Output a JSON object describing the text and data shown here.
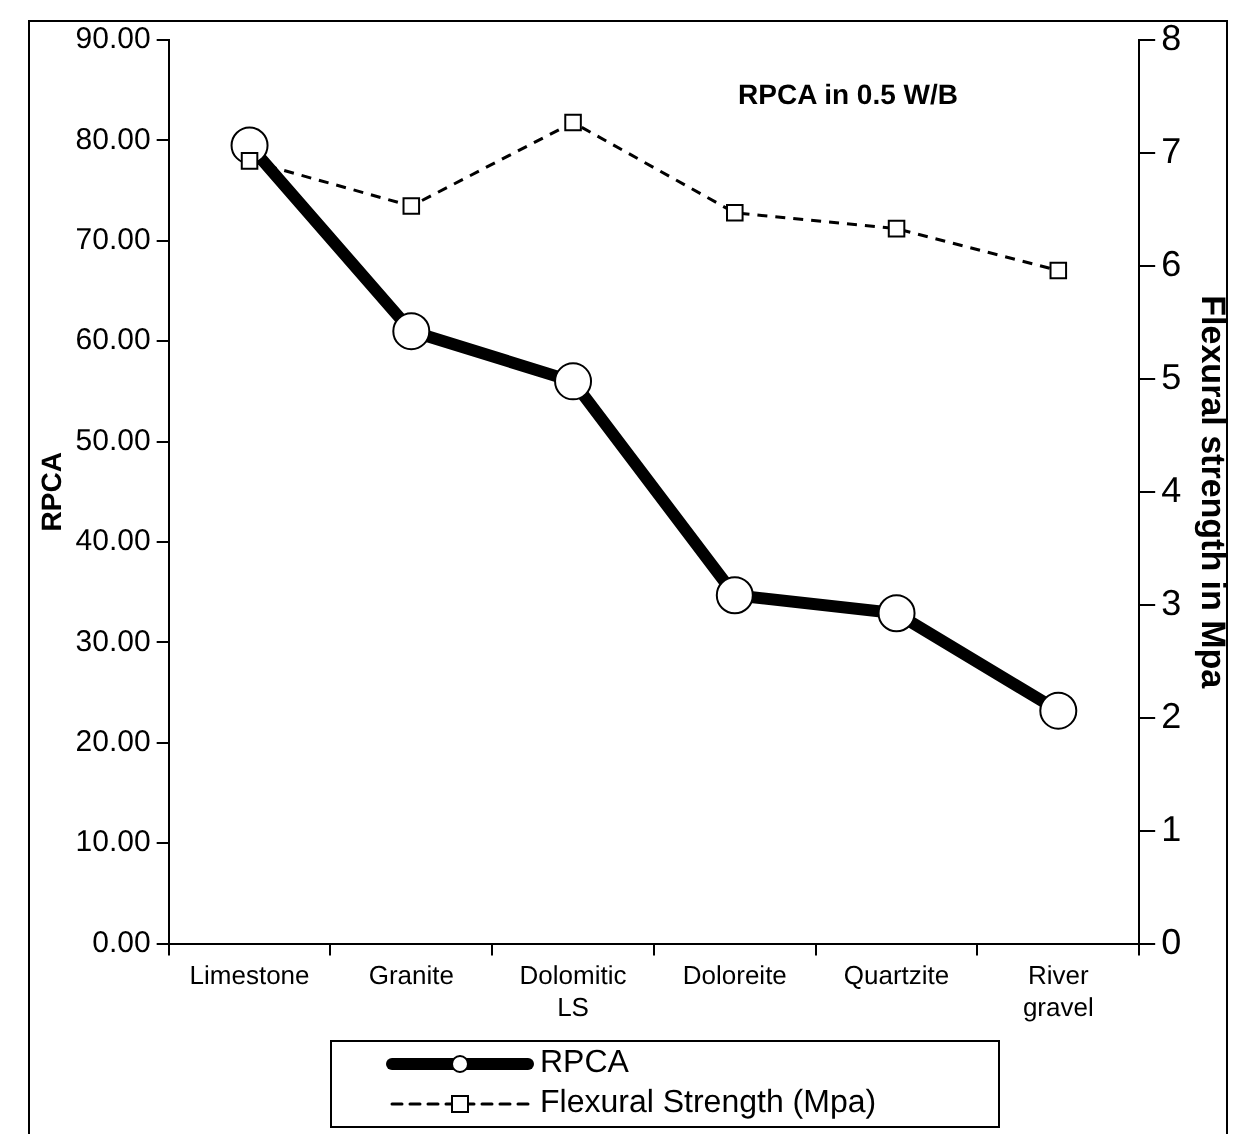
{
  "chart_data": {
    "type": "line",
    "title": "RPCA in 0.5 W/B",
    "ylabel": "RPCA",
    "y2label": "Flexural strength in Mpa",
    "categories": [
      "Limestone",
      "Granite",
      "Dolomitic\nLS",
      "Doloreite",
      "Quartzite",
      "River\ngravel"
    ],
    "series": [
      {
        "name": "RPCA",
        "color": "#000000",
        "values": [
          79.5,
          61.0,
          56.0,
          34.7,
          32.9,
          23.2
        ],
        "marker": "circle",
        "line_style": "solid"
      },
      {
        "name": "Flexural Strength (Mpa)",
        "color": "#000000",
        "values": [
          6.93,
          6.53,
          7.27,
          6.47,
          6.33,
          5.96
        ],
        "axis": "y2",
        "marker": "square",
        "line_style": "dashed"
      }
    ],
    "ylim": [
      0,
      90
    ],
    "yticks": [
      {
        "value": 0,
        "label": "0.00"
      },
      {
        "value": 10,
        "label": "10.00"
      },
      {
        "value": 20,
        "label": "20.00"
      },
      {
        "value": 30,
        "label": "30.00"
      },
      {
        "value": 40,
        "label": "40.00"
      },
      {
        "value": 50,
        "label": "50.00"
      },
      {
        "value": 60,
        "label": "60.00"
      },
      {
        "value": 70,
        "label": "70.00"
      },
      {
        "value": 80,
        "label": "80.00"
      },
      {
        "value": 90,
        "label": "90.00"
      }
    ],
    "y2lim": [
      0,
      8
    ],
    "y2ticks": [
      0,
      1,
      2,
      3,
      4,
      5,
      6,
      7,
      8
    ],
    "grid": false,
    "legend": "bottom"
  }
}
